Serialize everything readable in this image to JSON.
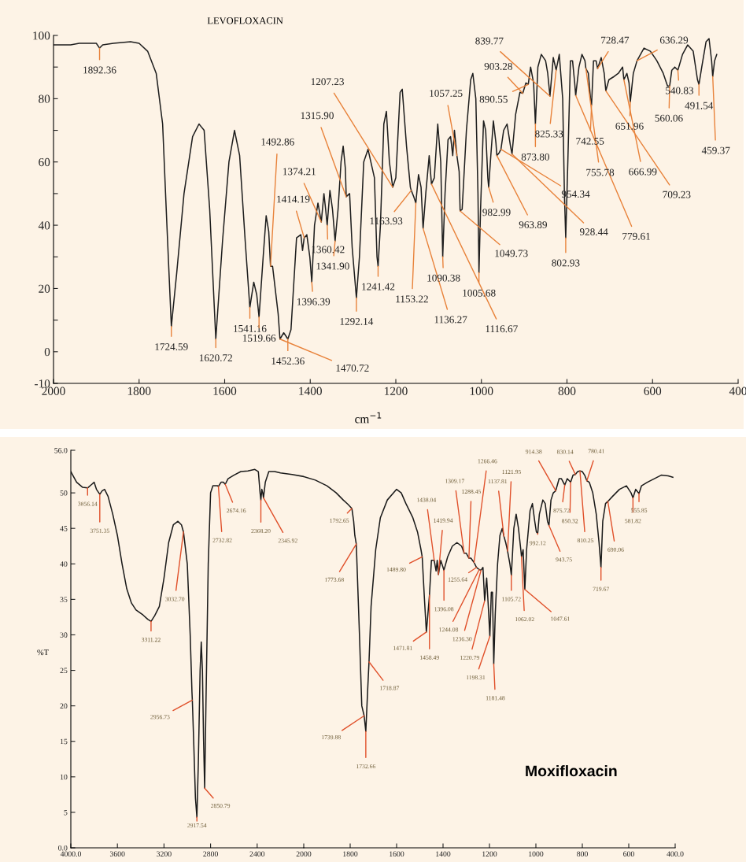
{
  "chart_data": [
    {
      "type": "line",
      "title": "LEVOFLOXACIN",
      "xlabel": "cm$^{−1}$",
      "xlim": [
        2000,
        400
      ],
      "ylim": [
        -10,
        100
      ],
      "xticks": [
        2000,
        1800,
        1600,
        1400,
        1200,
        1000,
        800,
        600,
        400
      ],
      "yticks": [
        -10,
        0,
        {
          "value": 10,
          "label": null
        },
        20,
        {
          "value": 30,
          "label": null
        },
        40,
        {
          "value": 50,
          "label": null
        },
        60,
        {
          "value": 70,
          "label": null
        },
        80,
        {
          "value": 90,
          "label": null
        },
        100
      ],
      "x": [
        2000,
        1960,
        1940,
        1900,
        1892.36,
        1885,
        1860,
        1820,
        1800,
        1780,
        1760,
        1745,
        1735,
        1724.59,
        1712,
        1695,
        1675,
        1660,
        1648,
        1635,
        1620.72,
        1605,
        1590,
        1577,
        1565,
        1552,
        1541.16,
        1532,
        1525,
        1519.66,
        1510,
        1503,
        1497,
        1492.86,
        1488,
        1475,
        1470.72,
        1462,
        1457,
        1452.36,
        1445,
        1432,
        1422,
        1418,
        1414.19,
        1408,
        1401,
        1396.39,
        1390,
        1382,
        1378,
        1374.21,
        1368,
        1364,
        1360.42,
        1354,
        1348,
        1341.9,
        1335,
        1328,
        1323,
        1318,
        1315.9,
        1308,
        1302,
        1292.14,
        1285,
        1275,
        1265,
        1250,
        1244,
        1241.42,
        1236,
        1228,
        1222,
        1215,
        1207.23,
        1200,
        1190,
        1185,
        1175,
        1166,
        1163.93,
        1158,
        1153.22,
        1147,
        1141,
        1136.27,
        1130,
        1122,
        1116.67,
        1110,
        1102,
        1095,
        1090.38,
        1085,
        1078,
        1072,
        1067,
        1063,
        1057.25,
        1052,
        1049.73,
        1045,
        1035,
        1025,
        1020,
        1013,
        1008,
        1005.68,
        1002,
        995,
        990,
        985,
        982.99,
        978,
        972,
        966,
        963.89,
        958,
        954.34,
        948,
        940,
        932,
        928.44,
        920,
        910,
        903.28,
        896,
        890.55,
        885,
        878,
        873.8,
        868,
        860,
        850,
        845,
        839.77,
        832,
        825.33,
        818,
        810,
        806,
        802.93,
        798,
        792,
        787,
        782,
        779.61,
        772,
        765,
        758,
        755.78,
        750,
        745,
        742.55,
        738,
        732,
        728.47,
        720,
        713,
        709.23,
        702,
        690,
        680,
        670,
        666.99,
        660,
        655,
        651.96,
        645,
        636.29,
        620,
        605,
        590,
        575,
        565,
        560.06,
        555,
        548,
        540.83,
        530,
        518,
        505,
        495,
        491.54,
        485,
        475,
        468,
        462,
        459.37,
        455,
        450
      ],
      "series": [
        {
          "color": "#1e1e1e",
          "values": [
            97,
            97,
            97.5,
            97.5,
            96,
            97,
            97.5,
            98,
            97.5,
            95,
            88,
            72,
            40,
            8,
            25,
            50,
            68,
            72,
            70,
            45,
            4,
            35,
            60,
            70,
            62,
            35,
            14,
            22,
            18,
            11,
            30,
            43,
            38,
            27,
            27,
            12,
            4,
            6,
            5,
            4,
            7,
            36,
            37,
            32,
            36,
            37,
            30,
            22,
            40,
            47,
            44,
            41,
            50,
            45,
            40,
            51,
            45,
            35,
            45,
            60,
            65,
            58,
            49,
            50,
            33,
            17,
            30,
            60,
            64,
            55,
            30,
            27,
            40,
            72,
            76,
            60,
            52,
            55,
            82,
            83,
            65,
            52,
            51,
            49,
            47,
            56,
            52,
            39,
            50,
            62,
            53,
            55,
            72,
            60,
            30,
            50,
            67,
            68,
            62,
            70,
            62,
            57,
            44.5,
            45,
            70,
            86,
            88,
            80,
            50,
            25,
            45,
            73,
            70,
            55,
            52,
            62,
            73,
            66,
            62,
            63,
            64,
            70,
            72,
            65,
            62.5,
            75,
            82,
            81.7,
            85,
            84.5,
            90,
            85,
            72,
            90,
            94,
            92,
            88,
            80.8,
            93,
            89,
            94,
            80,
            50,
            36,
            60,
            92,
            92,
            85,
            81,
            90,
            94,
            92,
            89.5,
            88,
            80,
            78,
            92,
            92,
            89.5,
            93,
            88,
            82.5,
            86,
            87,
            88,
            90,
            86,
            88,
            85,
            79,
            88,
            92,
            96,
            95,
            92,
            88,
            84,
            84,
            89,
            90,
            89,
            94,
            97,
            95,
            86,
            84.5,
            90,
            98,
            99,
            92,
            87,
            92,
            94
          ]
        }
      ],
      "annotations": [
        {
          "text": "1892.36",
          "x": 1892.36,
          "y": 96
        },
        {
          "text": "1724.59",
          "x": 1724.59,
          "y": 8
        },
        {
          "text": "1620.72",
          "x": 1620.72,
          "y": 4
        },
        {
          "text": "1541.16",
          "x": 1541.16,
          "y": 14
        },
        {
          "text": "1519.66",
          "x": 1519.66,
          "y": 11
        },
        {
          "text": "1492.86",
          "x": 1492.86,
          "y": 27
        },
        {
          "text": "1470.72",
          "x": 1470.72,
          "y": 4
        },
        {
          "text": "1452.36",
          "x": 1452.36,
          "y": 4
        },
        {
          "text": "1414.19",
          "x": 1414.19,
          "y": 36
        },
        {
          "text": "1396.39",
          "x": 1396.39,
          "y": 22
        },
        {
          "text": "1374.21",
          "x": 1374.21,
          "y": 41
        },
        {
          "text": "1360.42",
          "x": 1360.42,
          "y": 40
        },
        {
          "text": "1341.90",
          "x": 1341.9,
          "y": 35
        },
        {
          "text": "1315.90",
          "x": 1315.9,
          "y": 49
        },
        {
          "text": "1292.14",
          "x": 1292.14,
          "y": 17
        },
        {
          "text": "1241.42",
          "x": 1241.42,
          "y": 27
        },
        {
          "text": "1207.23",
          "x": 1207.23,
          "y": 52
        },
        {
          "text": "1163.93",
          "x": 1163.93,
          "y": 51
        },
        {
          "text": "1153.22",
          "x": 1153.22,
          "y": 47
        },
        {
          "text": "1136.27",
          "x": 1136.27,
          "y": 39
        },
        {
          "text": "1116.67",
          "x": 1116.67,
          "y": 53
        },
        {
          "text": "1090.38",
          "x": 1090.38,
          "y": 30
        },
        {
          "text": "1057.25",
          "x": 1057.25,
          "y": 62
        },
        {
          "text": "1049.73",
          "x": 1049.73,
          "y": 44.5
        },
        {
          "text": "1005.68",
          "x": 1005.68,
          "y": 25
        },
        {
          "text": "982.99",
          "x": 982.99,
          "y": 52
        },
        {
          "text": "963.89",
          "x": 963.89,
          "y": 62
        },
        {
          "text": "954.34",
          "x": 954.34,
          "y": 64
        },
        {
          "text": "928.44",
          "x": 928.44,
          "y": 62.5
        },
        {
          "text": "903.28",
          "x": 903.28,
          "y": 81.7
        },
        {
          "text": "890.55",
          "x": 890.55,
          "y": 84.5
        },
        {
          "text": "873.80",
          "x": 873.8,
          "y": 72
        },
        {
          "text": "839.77",
          "x": 839.77,
          "y": 80.8
        },
        {
          "text": "825.33",
          "x": 825.33,
          "y": 89
        },
        {
          "text": "802.93",
          "x": 802.93,
          "y": 36
        },
        {
          "text": "779.61",
          "x": 779.61,
          "y": 81
        },
        {
          "text": "755.78",
          "x": 755.78,
          "y": 89.5
        },
        {
          "text": "742.55",
          "x": 742.55,
          "y": 78
        },
        {
          "text": "728.47",
          "x": 728.47,
          "y": 89.5
        },
        {
          "text": "709.23",
          "x": 709.23,
          "y": 82.5
        },
        {
          "text": "666.99",
          "x": 666.99,
          "y": 86
        },
        {
          "text": "651.96",
          "x": 651.96,
          "y": 79
        },
        {
          "text": "636.29",
          "x": 636.29,
          "y": 92
        },
        {
          "text": "560.06",
          "x": 560.06,
          "y": 84
        },
        {
          "text": "540.83",
          "x": 540.83,
          "y": 89
        },
        {
          "text": "491.54",
          "x": 491.54,
          "y": 84.5
        },
        {
          "text": "459.37",
          "x": 459.37,
          "y": 87
        }
      ]
    },
    {
      "type": "line",
      "ylabel": "%T",
      "xlim": [
        4000,
        2000
      ],
      "ylim": [
        0,
        56
      ],
      "xticks": [
        {
          "value": 4000,
          "label": "4000.0"
        },
        3600,
        3200,
        2800,
        2400,
        2000
      ],
      "yticks": [
        {
          "value": 0,
          "label": "0.0"
        },
        5,
        10,
        15,
        20,
        25,
        30,
        35,
        40,
        45,
        50,
        {
          "value": 56,
          "label": "56.0"
        }
      ],
      "x": [
        4000,
        3950,
        3900,
        3856.14,
        3820,
        3800,
        3780,
        3751.35,
        3730,
        3710,
        3680,
        3640,
        3600,
        3560,
        3520,
        3480,
        3440,
        3380,
        3340,
        3311.22,
        3280,
        3240,
        3200,
        3160,
        3120,
        3080,
        3050,
        3032.7,
        3000,
        2975,
        2960,
        2956.73,
        2945,
        2930,
        2917.54,
        2905,
        2890,
        2880,
        2870,
        2860,
        2850.79,
        2840,
        2820,
        2800,
        2780,
        2760,
        2740,
        2732.82,
        2710,
        2690,
        2674.16,
        2650,
        2600,
        2540,
        2480,
        2420,
        2390,
        2375,
        2368.2,
        2360,
        2352,
        2345.92,
        2330,
        2300,
        2250,
        2200,
        2100,
        2000
      ],
      "series": [
        {
          "color": "#1a1a1a",
          "values": [
            53,
            51.5,
            50.8,
            50.7,
            51.2,
            51.5,
            50.5,
            49.8,
            50.3,
            50.5,
            49.5,
            47,
            44,
            40,
            36.5,
            34.5,
            33.5,
            32.8,
            32.2,
            31.9,
            32.7,
            34,
            38,
            43,
            45.5,
            46,
            45.5,
            44.5,
            40,
            30,
            22,
            20.8,
            15,
            7,
            4.3,
            12,
            25,
            29,
            25,
            15,
            8.4,
            20,
            40,
            50,
            51,
            51,
            51,
            50.9,
            51.5,
            51.5,
            51.2,
            52,
            52.5,
            53,
            53.1,
            53.3,
            53,
            50,
            49,
            50.5,
            50,
            49.3,
            51.5,
            53,
            53,
            52.8,
            52.6,
            52.3
          ]
        }
      ],
      "annotations": [
        {
          "text": "3856.14",
          "x": 3856.14,
          "y": 50.7
        },
        {
          "text": "3751.35",
          "x": 3751.35,
          "y": 49.8
        },
        {
          "text": "3311.22",
          "x": 3311.22,
          "y": 31.9
        },
        {
          "text": "3032.70",
          "x": 3032.7,
          "y": 44.5
        },
        {
          "text": "2956.73",
          "x": 2956.73,
          "y": 20.8
        },
        {
          "text": "2917.54",
          "x": 2917.54,
          "y": 4.3
        },
        {
          "text": "2850.79",
          "x": 2850.79,
          "y": 8.4
        },
        {
          "text": "2732.82",
          "x": 2732.82,
          "y": 50.9
        },
        {
          "text": "2674.16",
          "x": 2674.16,
          "y": 51.2
        },
        {
          "text": "2368.20",
          "x": 2368.2,
          "y": 49
        },
        {
          "text": "2345.92",
          "x": 2345.92,
          "y": 49.3
        }
      ]
    },
    {
      "type": "line",
      "title": "Moxifloxacin",
      "tick_labels": "x",
      "xlim": [
        2000,
        400
      ],
      "ylim": [
        0,
        56
      ],
      "xticks": [
        1800,
        1600,
        1400,
        1200,
        1000,
        800,
        600,
        {
          "value": 400,
          "label": "400.0"
        }
      ],
      "x": [
        2000,
        1950,
        1900,
        1860,
        1830,
        1810,
        1792.65,
        1785,
        1780,
        1773.68,
        1760,
        1750,
        1739.88,
        1732.66,
        1725,
        1718.87,
        1710,
        1690,
        1670,
        1640,
        1600,
        1580,
        1560,
        1530,
        1510,
        1495,
        1489.8,
        1480,
        1471.81,
        1465,
        1458.49,
        1450,
        1445,
        1438.04,
        1430,
        1425,
        1419.94,
        1410,
        1400,
        1396.08,
        1380,
        1360,
        1340,
        1320,
        1309.17,
        1300,
        1288.45,
        1280,
        1266.46,
        1255.64,
        1244.08,
        1236.3,
        1228,
        1220.79,
        1212,
        1205,
        1198.31,
        1192,
        1187,
        1181.48,
        1175,
        1165,
        1155,
        1145,
        1137.81,
        1130,
        1121.95,
        1112,
        1105.72,
        1095,
        1085,
        1075,
        1065,
        1062.02,
        1055,
        1047.61,
        1040,
        1025,
        1015,
        1005,
        998,
        992.12,
        985,
        970,
        960,
        950,
        943.75,
        935,
        925,
        914.38,
        900,
        890,
        875.72,
        865,
        850.32,
        840,
        830.14,
        820,
        810.25,
        800,
        790,
        780.41,
        770,
        755,
        740,
        728,
        719.67,
        712,
        700,
        690.06,
        670,
        640,
        610,
        590,
        581.82,
        570,
        555.85,
        545,
        520,
        490,
        460,
        430,
        410
      ],
      "series": [
        {
          "color": "#1a1a1a",
          "values": [
            52.3,
            51.8,
            51,
            50,
            49,
            48.4,
            47.8,
            46,
            44,
            42.8,
            30,
            20,
            18.6,
            16.4,
            22,
            26.2,
            34,
            42,
            46.5,
            49,
            50.5,
            50,
            48.5,
            46.5,
            44.5,
            42,
            41,
            35,
            30.4,
            33,
            35.6,
            40.5,
            40.5,
            40.5,
            39,
            40.5,
            38.5,
            40.5,
            39.5,
            39.1,
            41,
            42.5,
            43,
            42.5,
            41.5,
            41.5,
            40.8,
            40.8,
            40.2,
            39.5,
            39.2,
            39.1,
            39.5,
            34.8,
            38,
            34,
            29.8,
            36,
            36,
            25.9,
            33,
            40,
            44,
            45,
            43.9,
            43,
            41.8,
            40,
            38.4,
            45,
            47,
            45,
            42,
            41,
            42,
            36.4,
            42,
            47.5,
            48.5,
            46,
            44.5,
            44.3,
            47,
            49,
            48.5,
            46,
            45.4,
            49,
            50,
            50.3,
            52,
            52,
            51.1,
            52,
            51.5,
            52.5,
            52.6,
            53,
            53.1,
            53,
            52.5,
            51.7,
            51.5,
            50,
            47,
            43,
            39.5,
            46,
            48.5,
            48.8,
            49.5,
            50.5,
            51,
            50,
            49.3,
            50.5,
            49.9,
            51,
            51.5,
            52,
            52.5,
            52.4,
            52.2
          ]
        }
      ],
      "annotations": [
        {
          "text": "1792.65",
          "x": 1792.65,
          "y": 47.8
        },
        {
          "text": "1773.68",
          "x": 1773.68,
          "y": 42.8
        },
        {
          "text": "1739.88",
          "x": 1739.88,
          "y": 18.6
        },
        {
          "text": "1732.66",
          "x": 1732.66,
          "y": 16.4
        },
        {
          "text": "1718.87",
          "x": 1718.87,
          "y": 26.2
        },
        {
          "text": "1489.80",
          "x": 1489.8,
          "y": 41
        },
        {
          "text": "1471.81",
          "x": 1471.81,
          "y": 30.4
        },
        {
          "text": "1458.49",
          "x": 1458.49,
          "y": 35.6
        },
        {
          "text": "1438.04",
          "x": 1438.04,
          "y": 40.5
        },
        {
          "text": "1419.94",
          "x": 1419.94,
          "y": 38.5
        },
        {
          "text": "1396.08",
          "x": 1396.08,
          "y": 39.1
        },
        {
          "text": "1309.17",
          "x": 1309.17,
          "y": 41.5
        },
        {
          "text": "1288.45",
          "x": 1288.45,
          "y": 40.8
        },
        {
          "text": "1266.46",
          "x": 1266.46,
          "y": 40.2
        },
        {
          "text": "1255.64",
          "x": 1255.64,
          "y": 39.5
        },
        {
          "text": "1244.08",
          "x": 1244.08,
          "y": 39.2
        },
        {
          "text": "1236.30",
          "x": 1236.3,
          "y": 39.1
        },
        {
          "text": "1220.79",
          "x": 1220.79,
          "y": 34.8
        },
        {
          "text": "1198.31",
          "x": 1198.31,
          "y": 29.8
        },
        {
          "text": "1181.48",
          "x": 1181.48,
          "y": 25.9
        },
        {
          "text": "1137.81",
          "x": 1137.81,
          "y": 43.9
        },
        {
          "text": "1121.95",
          "x": 1121.95,
          "y": 41.8
        },
        {
          "text": "1105.72",
          "x": 1105.72,
          "y": 38.4
        },
        {
          "text": "1062.02",
          "x": 1062.02,
          "y": 41
        },
        {
          "text": "1047.61",
          "x": 1047.61,
          "y": 36.4
        },
        {
          "text": "992.12",
          "x": 992.12,
          "y": 44.3
        },
        {
          "text": "943.75",
          "x": 943.75,
          "y": 45.4
        },
        {
          "text": "914.38",
          "x": 914.38,
          "y": 50.3
        },
        {
          "text": "875.72",
          "x": 875.72,
          "y": 51.1
        },
        {
          "text": "850.32",
          "x": 850.32,
          "y": 51.5
        },
        {
          "text": "830.14",
          "x": 830.14,
          "y": 52.6
        },
        {
          "text": "810.25",
          "x": 810.25,
          "y": 53.1
        },
        {
          "text": "780.41",
          "x": 780.41,
          "y": 51.7
        },
        {
          "text": "719.67",
          "x": 719.67,
          "y": 39.5
        },
        {
          "text": "690.06",
          "x": 690.06,
          "y": 48.8
        },
        {
          "text": "581.82",
          "x": 581.82,
          "y": 49.3
        },
        {
          "text": "555.85",
          "x": 555.85,
          "y": 49.9
        }
      ]
    }
  ]
}
